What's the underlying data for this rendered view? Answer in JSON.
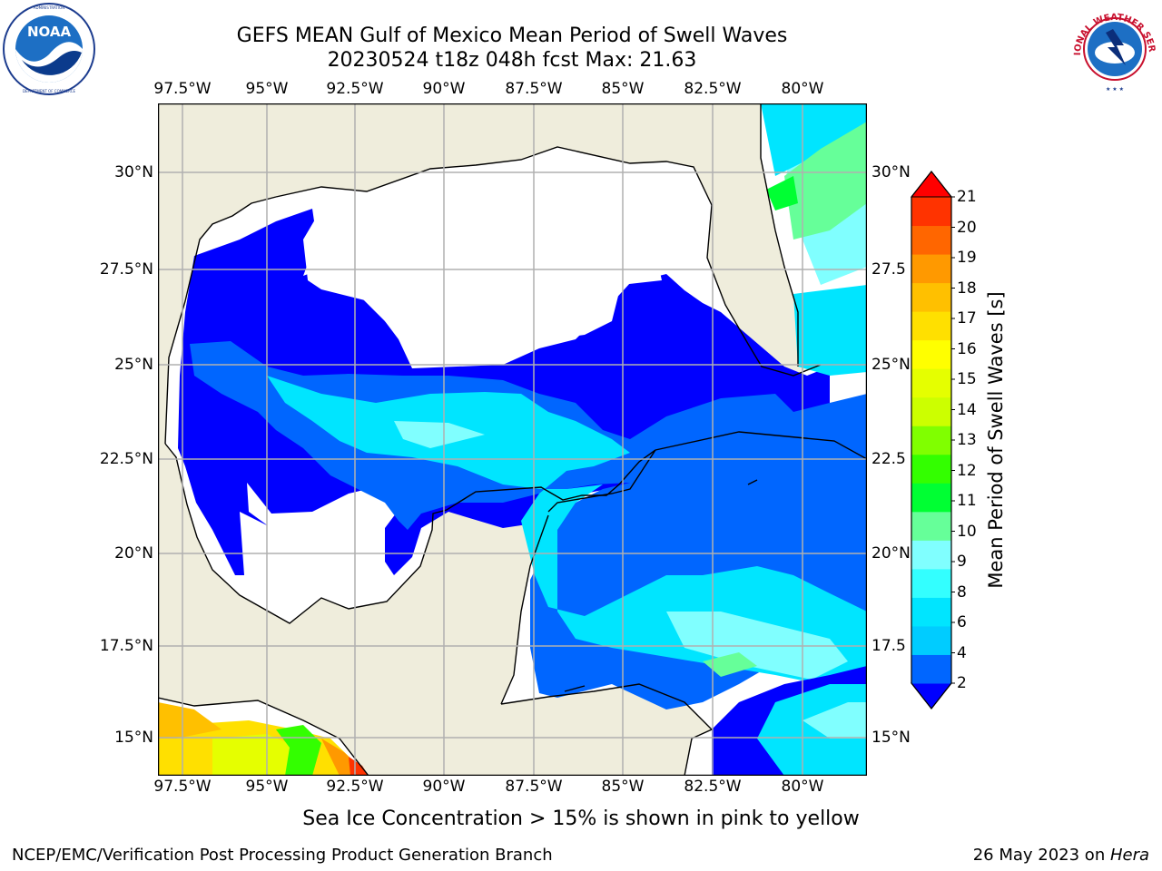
{
  "title": {
    "line1": "GEFS MEAN Gulf of Mexico Mean Period of Swell Waves",
    "line2": "20230524 t18z 048h fcst   Max: 21.63"
  },
  "logos": {
    "left": {
      "name": "NOAA",
      "text": "NOAA",
      "ring_text": "NATIONAL OCEANIC AND ATMOSPHERIC ADMINISTRATION · U.S. DEPARTMENT OF COMMERCE"
    },
    "right": {
      "name": "National Weather Service",
      "ring_text": "NATIONAL WEATHER SERVICE"
    }
  },
  "map": {
    "lon_labels_top": [
      "97.5°W",
      "95°W",
      "92.5°W",
      "90°W",
      "87.5°W",
      "85°W",
      "82.5°W",
      "80°W"
    ],
    "lon_labels_bottom": [
      "97.5°W",
      "95°W",
      "92.5°W",
      "90°W",
      "87.5°W",
      "85°W",
      "82.5°W",
      "80°W"
    ],
    "lat_labels_left": [
      "30°N",
      "27.5°N",
      "25°N",
      "22.5°N",
      "20°N",
      "17.5°N",
      "15°N"
    ],
    "lat_labels_right": [
      "30°N",
      "27.5",
      "25°N",
      "22.5",
      "20°N",
      "17.5",
      "15°N"
    ],
    "grid": true,
    "land_color": "#efeddc",
    "sea_default_color": "#ffffff"
  },
  "colorbar": {
    "label": "Mean Period of Swell Waves [s]",
    "ticks": [
      "2",
      "4",
      "6",
      "8",
      "9",
      "10",
      "11",
      "12",
      "13",
      "14",
      "15",
      "16",
      "17",
      "18",
      "19",
      "20",
      "21"
    ],
    "colors": [
      "#0000ff",
      "#0066ff",
      "#00ccff",
      "#00e5ff",
      "#33ffff",
      "#80ffff",
      "#66ff99",
      "#00ff33",
      "#33ff00",
      "#80ff00",
      "#ccff00",
      "#e5ff00",
      "#ffff00",
      "#ffe000",
      "#ffc000",
      "#ff9900",
      "#ff6600",
      "#ff3300",
      "#ff0000"
    ]
  },
  "note": "Sea Ice Concentration > 15% is shown in pink to yellow",
  "footer": {
    "left": "NCEP/EMC/Verification Post Processing Product Generation Branch",
    "right_date": "26 May 2023 on ",
    "right_machine": "Hera"
  }
}
